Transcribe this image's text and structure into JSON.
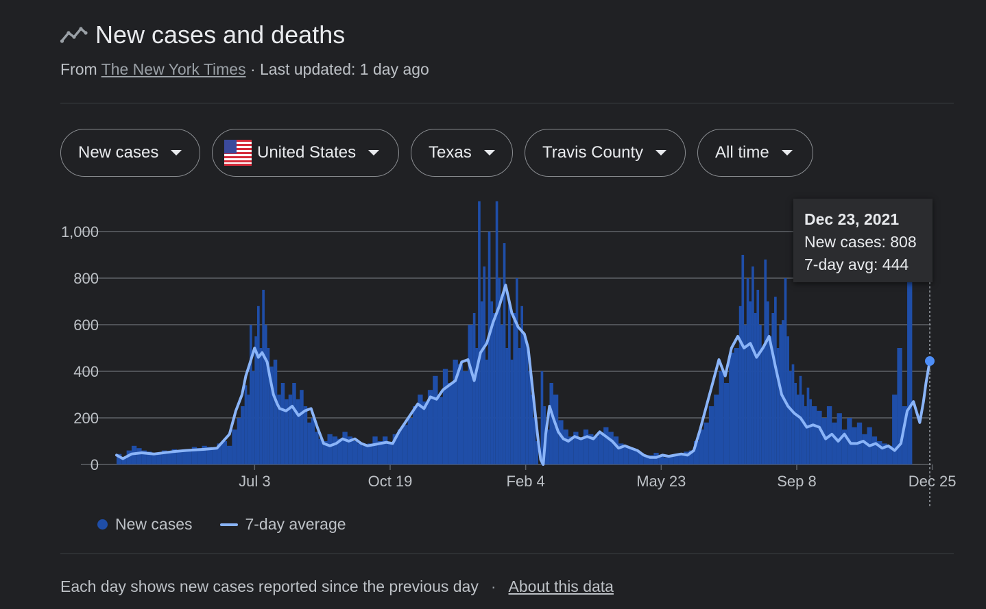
{
  "header": {
    "title": "New cases and deaths",
    "source_prefix": "From",
    "source_name": "The New York Times",
    "updated": "· Last updated: 1 day ago"
  },
  "filters": {
    "metric": "New cases",
    "country": "United States",
    "state": "Texas",
    "county": "Travis County",
    "range": "All time"
  },
  "tooltip": {
    "date": "Dec 23, 2021",
    "new_cases": "New cases: 808",
    "avg": "7-day avg: 444"
  },
  "legend": {
    "bars": "New cases",
    "line": "7-day average"
  },
  "footer": {
    "note": "Each day shows new cases reported since the previous day",
    "about": "About this data"
  },
  "colors": {
    "bars": "#1f4ea8",
    "line": "#8ab4f8",
    "grid": "#5f6368",
    "marker": "#4e8ef7"
  },
  "chart_data": {
    "type": "bar",
    "title": "New cases and deaths",
    "xlabel": "",
    "ylabel": "",
    "ylim": [
      0,
      1000
    ],
    "yticks": [
      0,
      200,
      400,
      600,
      800,
      1000
    ],
    "ytick_labels": [
      "0",
      "200",
      "400",
      "600",
      "800",
      "1,000"
    ],
    "xticks": [
      {
        "label": "Jul 3",
        "day": 110
      },
      {
        "label": "Oct 19",
        "day": 218
      },
      {
        "label": "Feb 4",
        "day": 326
      },
      {
        "label": "May 23",
        "day": 434
      },
      {
        "label": "Sep 8",
        "day": 542
      },
      {
        "label": "Dec 25",
        "day": 650
      }
    ],
    "series": [
      {
        "name": "7-day average",
        "type": "line",
        "day_x": [
          0,
          5,
          12,
          20,
          30,
          45,
          55,
          70,
          80,
          90,
          95,
          100,
          103,
          106,
          110,
          113,
          116,
          120,
          122,
          125,
          128,
          130,
          135,
          140,
          145,
          150,
          155,
          160,
          165,
          170,
          175,
          180,
          185,
          190,
          195,
          200,
          205,
          210,
          215,
          220,
          225,
          230,
          235,
          240,
          245,
          250,
          255,
          260,
          265,
          270,
          275,
          280,
          285,
          290,
          295,
          300,
          305,
          310,
          315,
          320,
          325,
          328,
          330,
          332,
          334,
          336,
          338,
          340,
          342,
          345,
          348,
          352,
          356,
          360,
          365,
          370,
          375,
          380,
          385,
          390,
          395,
          400,
          405,
          410,
          415,
          420,
          425,
          430,
          435,
          440,
          445,
          450,
          455,
          460,
          465,
          470,
          475,
          480,
          485,
          490,
          495,
          500,
          505,
          510,
          515,
          520,
          525,
          530,
          535,
          540,
          545,
          550,
          555,
          560,
          565,
          570,
          575,
          580,
          585,
          590,
          595,
          600,
          605,
          610,
          615,
          620,
          625,
          630,
          635,
          640,
          643,
          645,
          648
        ],
        "values": [
          40,
          25,
          45,
          50,
          45,
          55,
          60,
          65,
          70,
          130,
          230,
          300,
          380,
          430,
          500,
          460,
          480,
          440,
          380,
          300,
          260,
          240,
          230,
          250,
          210,
          230,
          240,
          160,
          90,
          80,
          90,
          110,
          100,
          110,
          90,
          80,
          85,
          90,
          95,
          90,
          140,
          180,
          220,
          260,
          240,
          290,
          280,
          320,
          340,
          360,
          440,
          450,
          360,
          480,
          520,
          610,
          680,
          770,
          650,
          590,
          560,
          500,
          400,
          300,
          200,
          100,
          20,
          0,
          130,
          250,
          200,
          140,
          110,
          100,
          120,
          110,
          120,
          110,
          140,
          120,
          100,
          70,
          80,
          70,
          60,
          40,
          30,
          30,
          40,
          35,
          40,
          45,
          40,
          60,
          150,
          250,
          350,
          450,
          380,
          500,
          550,
          500,
          520,
          460,
          500,
          550,
          420,
          300,
          250,
          220,
          200,
          160,
          170,
          160,
          110,
          130,
          100,
          130,
          90,
          90,
          100,
          80,
          90,
          70,
          80,
          60,
          90,
          230,
          270,
          180,
          270,
          350,
          444
        ]
      }
    ],
    "bars_sampled": {
      "name": "New cases",
      "day_x": [
        0,
        4,
        8,
        12,
        16,
        20,
        24,
        28,
        32,
        36,
        40,
        44,
        48,
        52,
        56,
        60,
        64,
        68,
        72,
        76,
        80,
        84,
        88,
        92,
        96,
        99,
        102,
        104,
        106,
        108,
        110,
        112,
        114,
        116,
        118,
        120,
        122,
        125,
        128,
        131,
        134,
        137,
        140,
        143,
        146,
        149,
        152,
        155,
        158,
        161,
        164,
        168,
        172,
        176,
        180,
        184,
        188,
        192,
        196,
        200,
        204,
        208,
        212,
        216,
        220,
        224,
        228,
        232,
        236,
        240,
        244,
        248,
        252,
        256,
        260,
        264,
        268,
        272,
        276,
        280,
        284,
        286,
        288,
        290,
        292,
        294,
        296,
        298,
        300,
        302,
        304,
        306,
        308,
        310,
        312,
        314,
        316,
        318,
        320,
        322,
        324,
        326,
        328,
        330,
        332,
        334,
        336,
        338,
        340,
        342,
        345,
        348,
        352,
        356,
        360,
        364,
        368,
        372,
        376,
        380,
        384,
        388,
        392,
        396,
        400,
        404,
        408,
        412,
        416,
        420,
        424,
        428,
        432,
        436,
        440,
        444,
        448,
        452,
        456,
        460,
        464,
        468,
        472,
        476,
        480,
        484,
        488,
        492,
        496,
        498,
        500,
        502,
        504,
        506,
        508,
        510,
        512,
        514,
        516,
        518,
        520,
        522,
        524,
        526,
        528,
        530,
        532,
        534,
        536,
        538,
        540,
        542,
        544,
        546,
        548,
        550,
        552,
        554,
        558,
        562,
        566,
        570,
        574,
        578,
        582,
        586,
        590,
        594,
        598,
        602,
        606,
        610,
        614,
        618,
        622,
        626,
        630,
        634,
        638,
        642,
        644,
        646,
        648
      ],
      "values": [
        45,
        30,
        60,
        80,
        70,
        60,
        55,
        50,
        45,
        60,
        55,
        65,
        60,
        55,
        65,
        75,
        70,
        80,
        75,
        70,
        90,
        100,
        80,
        150,
        200,
        250,
        340,
        300,
        600,
        400,
        550,
        680,
        500,
        750,
        600,
        500,
        420,
        450,
        300,
        350,
        280,
        300,
        350,
        280,
        320,
        250,
        180,
        200,
        140,
        110,
        100,
        130,
        120,
        110,
        140,
        120,
        100,
        90,
        80,
        90,
        120,
        100,
        120,
        90,
        130,
        150,
        170,
        200,
        250,
        300,
        270,
        320,
        380,
        290,
        410,
        350,
        450,
        430,
        400,
        600,
        650,
        500,
        1130,
        700,
        850,
        450,
        1000,
        700,
        650,
        1130,
        800,
        600,
        950,
        500,
        700,
        450,
        650,
        800,
        500,
        680,
        550,
        520,
        400,
        300,
        200,
        100,
        0,
        400,
        250,
        150,
        350,
        300,
        190,
        150,
        120,
        140,
        110,
        150,
        130,
        120,
        130,
        160,
        140,
        120,
        90,
        80,
        70,
        60,
        50,
        40,
        40,
        50,
        35,
        30,
        40,
        45,
        40,
        55,
        60,
        100,
        150,
        180,
        250,
        300,
        400,
        350,
        480,
        500,
        680,
        900,
        600,
        800,
        700,
        850,
        650,
        750,
        600,
        500,
        880,
        700,
        550,
        650,
        720,
        500,
        600,
        620,
        800,
        550,
        400,
        430,
        350,
        300,
        380,
        300,
        250,
        330,
        280,
        250,
        230,
        200,
        250,
        180,
        220,
        150,
        200,
        160,
        180,
        130,
        160,
        120,
        100,
        90,
        80,
        300,
        500,
        250,
        808
      ]
    },
    "highlight": {
      "day": 648,
      "value": 444
    }
  }
}
